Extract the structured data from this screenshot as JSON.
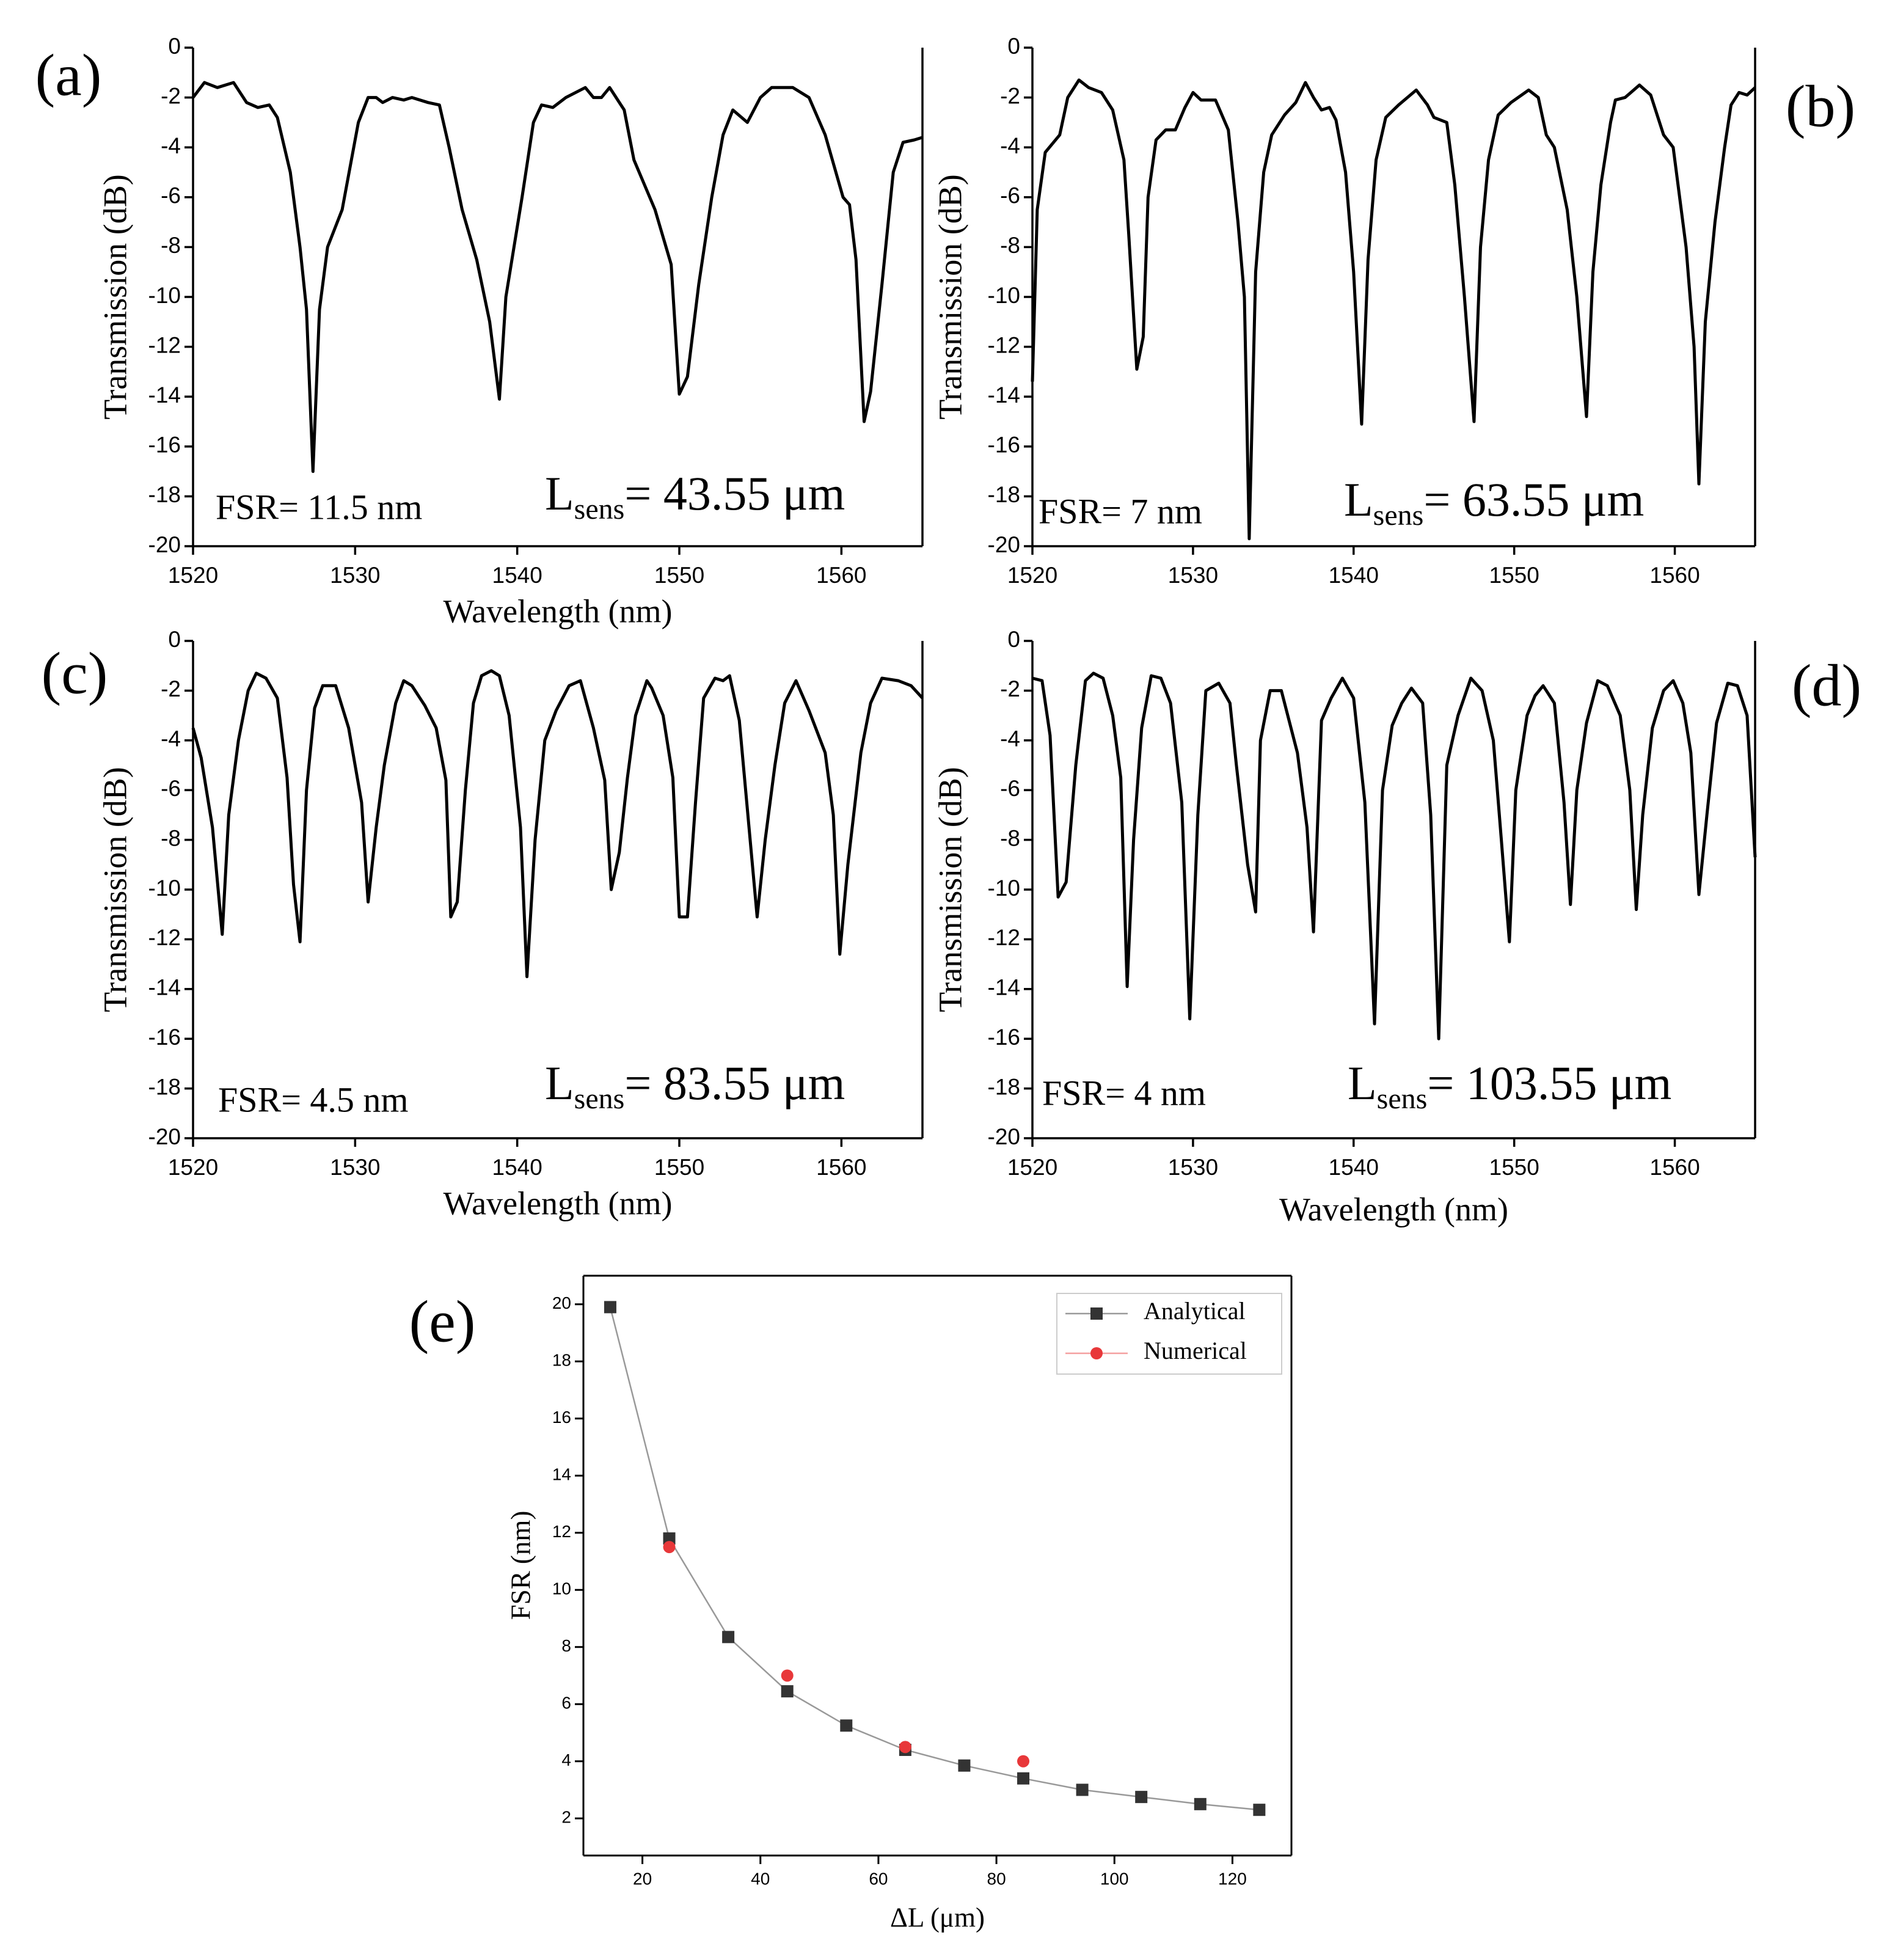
{
  "chart_data": [
    {
      "type": "line",
      "panel_label": "(a)",
      "fsr_label": "FSR= 11.5 nm",
      "length_label": {
        "symbol": "L",
        "subscript": "sens",
        "text": "= 43.55 μm"
      },
      "x_label": "Wavelength (nm)",
      "y_label": "Transmission (dB)",
      "color": "#000000",
      "xlim": [
        1520,
        1565
      ],
      "ylim": [
        -20,
        0
      ],
      "xticks": [
        1520,
        1530,
        1540,
        1550,
        1560
      ],
      "yticks": [
        0,
        -2,
        -4,
        -6,
        -8,
        -10,
        -12,
        -14,
        -16,
        -18,
        -20
      ],
      "x": [
        1520,
        1520.7,
        1521.5,
        1522.5,
        1523.3,
        1524,
        1524.7,
        1525.2,
        1526,
        1526.6,
        1527,
        1527.4,
        1527.8,
        1528.3,
        1529.2,
        1530.2,
        1530.8,
        1531.3,
        1531.7,
        1532.3,
        1533,
        1533.5,
        1534.5,
        1535.2,
        1535.8,
        1536.6,
        1537.5,
        1538.3,
        1538.9,
        1539.3,
        1540.3,
        1541,
        1541.5,
        1542.2,
        1543,
        1544.2,
        1544.7,
        1545.2,
        1545.7,
        1546.6,
        1547.2,
        1548.5,
        1549.5,
        1550,
        1550.5,
        1551.2,
        1552,
        1552.7,
        1553.3,
        1554.2,
        1555,
        1555.7,
        1557,
        1558,
        1559,
        1560.1,
        1560.5,
        1560.9,
        1561.4,
        1561.8,
        1562.5,
        1563.2,
        1563.8,
        1564.5,
        1565
      ],
      "values": [
        -2,
        -1.4,
        -1.6,
        -1.4,
        -2.2,
        -2.4,
        -2.3,
        -2.8,
        -5,
        -8,
        -10.5,
        -17,
        -10.5,
        -8,
        -6.5,
        -3,
        -2,
        -2,
        -2.2,
        -2,
        -2.1,
        -2,
        -2.2,
        -2.3,
        -4,
        -6.5,
        -8.5,
        -11,
        -14.1,
        -10,
        -6,
        -3,
        -2.3,
        -2.4,
        -2,
        -1.6,
        -2,
        -2,
        -1.6,
        -2.5,
        -4.5,
        -6.5,
        -8.7,
        -13.9,
        -13.2,
        -9.5,
        -6,
        -3.5,
        -2.5,
        -3,
        -2,
        -1.6,
        -1.6,
        -2,
        -3.5,
        -6,
        -6.3,
        -8.5,
        -15,
        -13.8,
        -9.5,
        -5,
        -3.8,
        -3.7,
        -3.6
      ]
    },
    {
      "type": "line",
      "panel_label": "(b)",
      "fsr_label": "FSR= 7 nm",
      "length_label": {
        "symbol": "L",
        "subscript": "sens",
        "text": "= 63.55 μm"
      },
      "y_label": "Transmission (dB)",
      "color": "#000000",
      "xlim": [
        1520,
        1565
      ],
      "ylim": [
        -20,
        0
      ],
      "xticks": [
        1520,
        1530,
        1540,
        1550,
        1560
      ],
      "yticks": [
        0,
        -2,
        -4,
        -6,
        -8,
        -10,
        -12,
        -14,
        -16,
        -18,
        -20
      ],
      "x": [
        1520,
        1520.3,
        1520.8,
        1521.7,
        1522.2,
        1522.9,
        1523.5,
        1524.3,
        1525,
        1525.7,
        1526,
        1526.5,
        1526.9,
        1527.2,
        1527.7,
        1528.3,
        1528.9,
        1529.5,
        1530,
        1530.5,
        1531.4,
        1532.2,
        1532.8,
        1533.2,
        1533.5,
        1533.9,
        1534.4,
        1534.9,
        1535.7,
        1536.4,
        1537,
        1537.5,
        1538,
        1538.5,
        1538.9,
        1539.5,
        1540,
        1540.5,
        1540.9,
        1541.4,
        1542,
        1542.8,
        1543.9,
        1544.6,
        1545,
        1545.8,
        1546.3,
        1546.9,
        1547.5,
        1547.9,
        1548.4,
        1549,
        1549.8,
        1550.9,
        1551.5,
        1552,
        1552.5,
        1553.3,
        1553.9,
        1554.5,
        1554.9,
        1555.4,
        1556,
        1556.3,
        1556.9,
        1557.8,
        1558.5,
        1559.3,
        1559.9,
        1560.7,
        1561.2,
        1561.5,
        1561.9,
        1562.5,
        1563.1,
        1563.5,
        1564,
        1564.5,
        1565
      ],
      "values": [
        -13.4,
        -6.5,
        -4.2,
        -3.5,
        -2,
        -1.3,
        -1.6,
        -1.8,
        -2.5,
        -4.5,
        -7.5,
        -12.9,
        -11.6,
        -6,
        -3.7,
        -3.3,
        -3.3,
        -2.4,
        -1.8,
        -2.1,
        -2.1,
        -3.3,
        -7,
        -10,
        -19.7,
        -9,
        -5,
        -3.5,
        -2.7,
        -2.2,
        -1.4,
        -2,
        -2.5,
        -2.4,
        -2.9,
        -5,
        -9,
        -15.1,
        -8.5,
        -4.5,
        -2.8,
        -2.3,
        -1.7,
        -2.3,
        -2.8,
        -3,
        -5.5,
        -10,
        -15,
        -8,
        -4.5,
        -2.7,
        -2.2,
        -1.7,
        -2,
        -3.5,
        -4,
        -6.5,
        -10,
        -14.8,
        -9,
        -5.5,
        -3,
        -2.1,
        -2,
        -1.5,
        -1.9,
        -3.5,
        -4,
        -8,
        -12,
        -17.5,
        -11,
        -7,
        -4,
        -2.3,
        -1.8,
        -1.9,
        -1.6
      ]
    },
    {
      "type": "line",
      "panel_label": "(c)",
      "fsr_label": "FSR= 4.5 nm",
      "length_label": {
        "symbol": "L",
        "subscript": "sens",
        "text": "= 83.55 μm"
      },
      "x_label": "Wavelength (nm)",
      "y_label": "Transmission (dB)",
      "color": "#000000",
      "xlim": [
        1520,
        1565
      ],
      "ylim": [
        -20,
        0
      ],
      "xticks": [
        1520,
        1530,
        1540,
        1550,
        1560
      ],
      "yticks": [
        0,
        -2,
        -4,
        -6,
        -8,
        -10,
        -12,
        -14,
        -16,
        -18,
        -20
      ],
      "x": [
        1520,
        1520.5,
        1521.2,
        1521.8,
        1522.2,
        1522.8,
        1523.4,
        1523.9,
        1524.5,
        1525.2,
        1525.8,
        1526.2,
        1526.6,
        1527,
        1527.5,
        1528,
        1528.8,
        1529.6,
        1530.4,
        1530.8,
        1531.3,
        1531.8,
        1532.5,
        1533,
        1533.5,
        1534.3,
        1535,
        1535.6,
        1535.9,
        1536.3,
        1536.8,
        1537.3,
        1537.8,
        1538.4,
        1538.9,
        1539.5,
        1540.2,
        1540.6,
        1541.1,
        1541.7,
        1542.4,
        1543.2,
        1543.9,
        1544.7,
        1545.4,
        1545.8,
        1546.3,
        1546.8,
        1547.3,
        1548,
        1548.3,
        1549,
        1549.6,
        1550,
        1550.5,
        1551,
        1551.5,
        1552.2,
        1552.7,
        1553.1,
        1553.7,
        1554.3,
        1554.8,
        1555.3,
        1555.9,
        1556.5,
        1557.2,
        1558,
        1559,
        1559.5,
        1559.9,
        1560.4,
        1561.2,
        1561.8,
        1562.5,
        1563.5,
        1564.3,
        1565
      ],
      "values": [
        -3.5,
        -4.7,
        -7.5,
        -11.8,
        -7,
        -4,
        -2,
        -1.3,
        -1.5,
        -2.3,
        -5.5,
        -9.8,
        -12.1,
        -6,
        -2.7,
        -1.8,
        -1.8,
        -3.5,
        -6.5,
        -10.5,
        -7.5,
        -5,
        -2.5,
        -1.6,
        -1.8,
        -2.6,
        -3.5,
        -5.6,
        -11.1,
        -10.5,
        -6,
        -2.5,
        -1.4,
        -1.2,
        -1.4,
        -3,
        -7.5,
        -13.5,
        -8,
        -4,
        -2.8,
        -1.8,
        -1.6,
        -3.5,
        -5.6,
        -10,
        -8.5,
        -5.5,
        -3,
        -1.6,
        -1.9,
        -3,
        -5.5,
        -11.1,
        -11.1,
        -6.5,
        -2.3,
        -1.5,
        -1.6,
        -1.4,
        -3.2,
        -7.5,
        -11.1,
        -8,
        -5,
        -2.5,
        -1.6,
        -2.8,
        -4.5,
        -7,
        -12.6,
        -9,
        -4.5,
        -2.5,
        -1.5,
        -1.6,
        -1.8,
        -2.3
      ]
    },
    {
      "type": "line",
      "panel_label": "(d)",
      "fsr_label": "FSR= 4 nm",
      "length_label": {
        "symbol": "L",
        "subscript": "sens",
        "text": "= 103.55 μm"
      },
      "x_label": "Wavelength (nm)",
      "y_label": "Transmission (dB)",
      "color": "#000000",
      "xlim": [
        1520,
        1565
      ],
      "ylim": [
        -20,
        0
      ],
      "xticks": [
        1520,
        1530,
        1540,
        1550,
        1560
      ],
      "yticks": [
        0,
        -2,
        -4,
        -6,
        -8,
        -10,
        -12,
        -14,
        -16,
        -18,
        -20
      ],
      "x": [
        1520,
        1520.6,
        1521.1,
        1521.6,
        1522.1,
        1522.7,
        1523.3,
        1523.8,
        1524.4,
        1525,
        1525.5,
        1525.9,
        1526.3,
        1526.8,
        1527.4,
        1528,
        1528.6,
        1529.3,
        1529.8,
        1530.3,
        1530.8,
        1531.6,
        1532.3,
        1532.7,
        1533.4,
        1533.9,
        1534.2,
        1534.8,
        1535.5,
        1535.9,
        1536.5,
        1537.1,
        1537.5,
        1538,
        1538.6,
        1539.3,
        1540,
        1540.7,
        1541.3,
        1541.8,
        1542.4,
        1543,
        1543.6,
        1544.3,
        1544.8,
        1545.3,
        1545.8,
        1546.5,
        1547.3,
        1548,
        1548.7,
        1549.2,
        1549.7,
        1550.1,
        1550.8,
        1551.3,
        1551.8,
        1552.5,
        1553.1,
        1553.5,
        1553.9,
        1554.5,
        1555.2,
        1555.8,
        1556.6,
        1557.2,
        1557.6,
        1558,
        1558.6,
        1559.3,
        1559.9,
        1560.5,
        1561,
        1561.5,
        1562,
        1562.6,
        1563.3,
        1563.9,
        1564.5,
        1565
      ],
      "values": [
        -1.5,
        -1.6,
        -3.8,
        -10.3,
        -9.7,
        -5,
        -1.6,
        -1.3,
        -1.5,
        -3,
        -5.5,
        -13.9,
        -8,
        -3.5,
        -1.4,
        -1.5,
        -2.5,
        -6.5,
        -15.2,
        -7,
        -2,
        -1.7,
        -2.5,
        -5,
        -9,
        -10.9,
        -4,
        -2,
        -2,
        -3,
        -4.5,
        -7.5,
        -11.7,
        -3.2,
        -2.3,
        -1.5,
        -2.3,
        -6.5,
        -15.4,
        -6,
        -3.4,
        -2.5,
        -1.9,
        -2.5,
        -7,
        -16,
        -5,
        -3,
        -1.5,
        -2,
        -4,
        -8,
        -12.1,
        -6,
        -3,
        -2.2,
        -1.8,
        -2.5,
        -6.5,
        -10.6,
        -6,
        -3.3,
        -1.6,
        -1.8,
        -3,
        -6,
        -10.8,
        -7,
        -3.5,
        -2,
        -1.6,
        -2.5,
        -4.5,
        -10.2,
        -7,
        -3.3,
        -1.7,
        -1.8,
        -3,
        -8.7
      ]
    },
    {
      "type": "scatter",
      "panel_label": "(e)",
      "x_label": "ΔL (μm)",
      "y_label": "FSR (nm)",
      "legend": "upper right",
      "xlim": [
        10,
        130
      ],
      "ylim": [
        0.7,
        21
      ],
      "xticks": [
        20,
        40,
        60,
        80,
        100,
        120
      ],
      "yticks": [
        2,
        4,
        6,
        8,
        10,
        12,
        14,
        16,
        18,
        20
      ],
      "series": [
        {
          "name": "Analytical",
          "color": "#333333",
          "line_color": "#999999",
          "marker": "square",
          "line": true,
          "x": [
            14.55,
            24.55,
            34.55,
            44.55,
            54.55,
            64.55,
            74.55,
            84.55,
            94.55,
            104.55,
            114.55,
            124.55
          ],
          "values": [
            19.9,
            11.8,
            8.35,
            6.45,
            5.25,
            4.4,
            3.85,
            3.4,
            3,
            2.75,
            2.5,
            2.3
          ]
        },
        {
          "name": "Numerical",
          "color": "#e8383a",
          "line_color": "#f4a0a0",
          "marker": "circle",
          "line": false,
          "x": [
            24.55,
            44.55,
            64.55,
            84.55
          ],
          "values": [
            11.5,
            7,
            4.5,
            4
          ]
        }
      ]
    }
  ]
}
